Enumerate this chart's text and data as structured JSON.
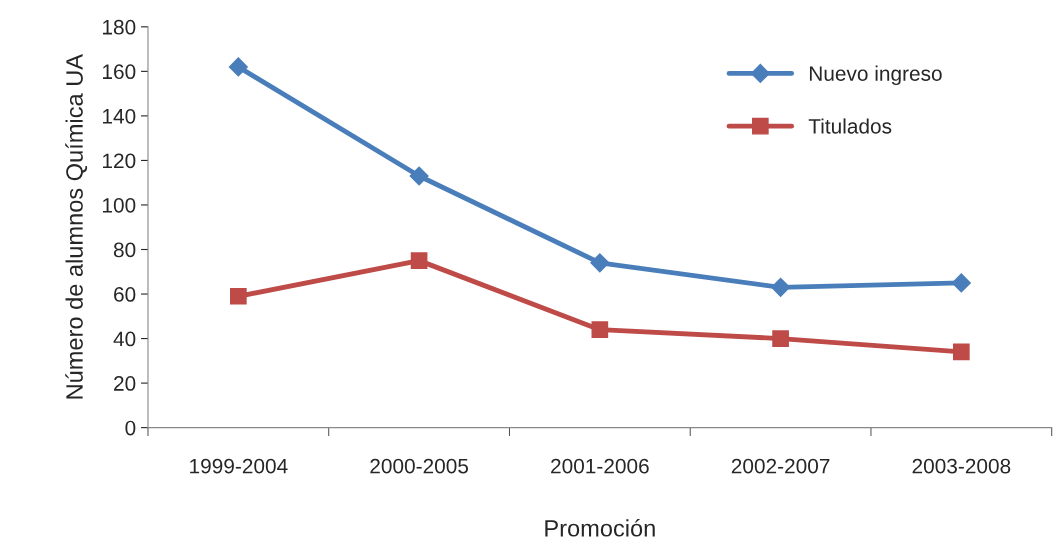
{
  "chart_data": {
    "type": "line",
    "xlabel": "Promoción",
    "ylabel": "Número de alumnos Química UA",
    "categories": [
      "1999-2004",
      "2000-2005",
      "2001-2006",
      "2002-2007",
      "2003-2008"
    ],
    "series": [
      {
        "name": "Nuevo ingreso",
        "color": "#4a7ebb",
        "marker": "diamond",
        "values": [
          162,
          113,
          74,
          63,
          65
        ]
      },
      {
        "name": "Titulados",
        "color": "#be4b48",
        "marker": "square",
        "values": [
          59,
          75,
          44,
          40,
          34
        ]
      }
    ],
    "ylim": [
      0,
      180
    ],
    "yticks": [
      0,
      20,
      40,
      60,
      80,
      100,
      120,
      140,
      160,
      180
    ],
    "grid": false,
    "legend": "top right",
    "line_style": "solid"
  }
}
